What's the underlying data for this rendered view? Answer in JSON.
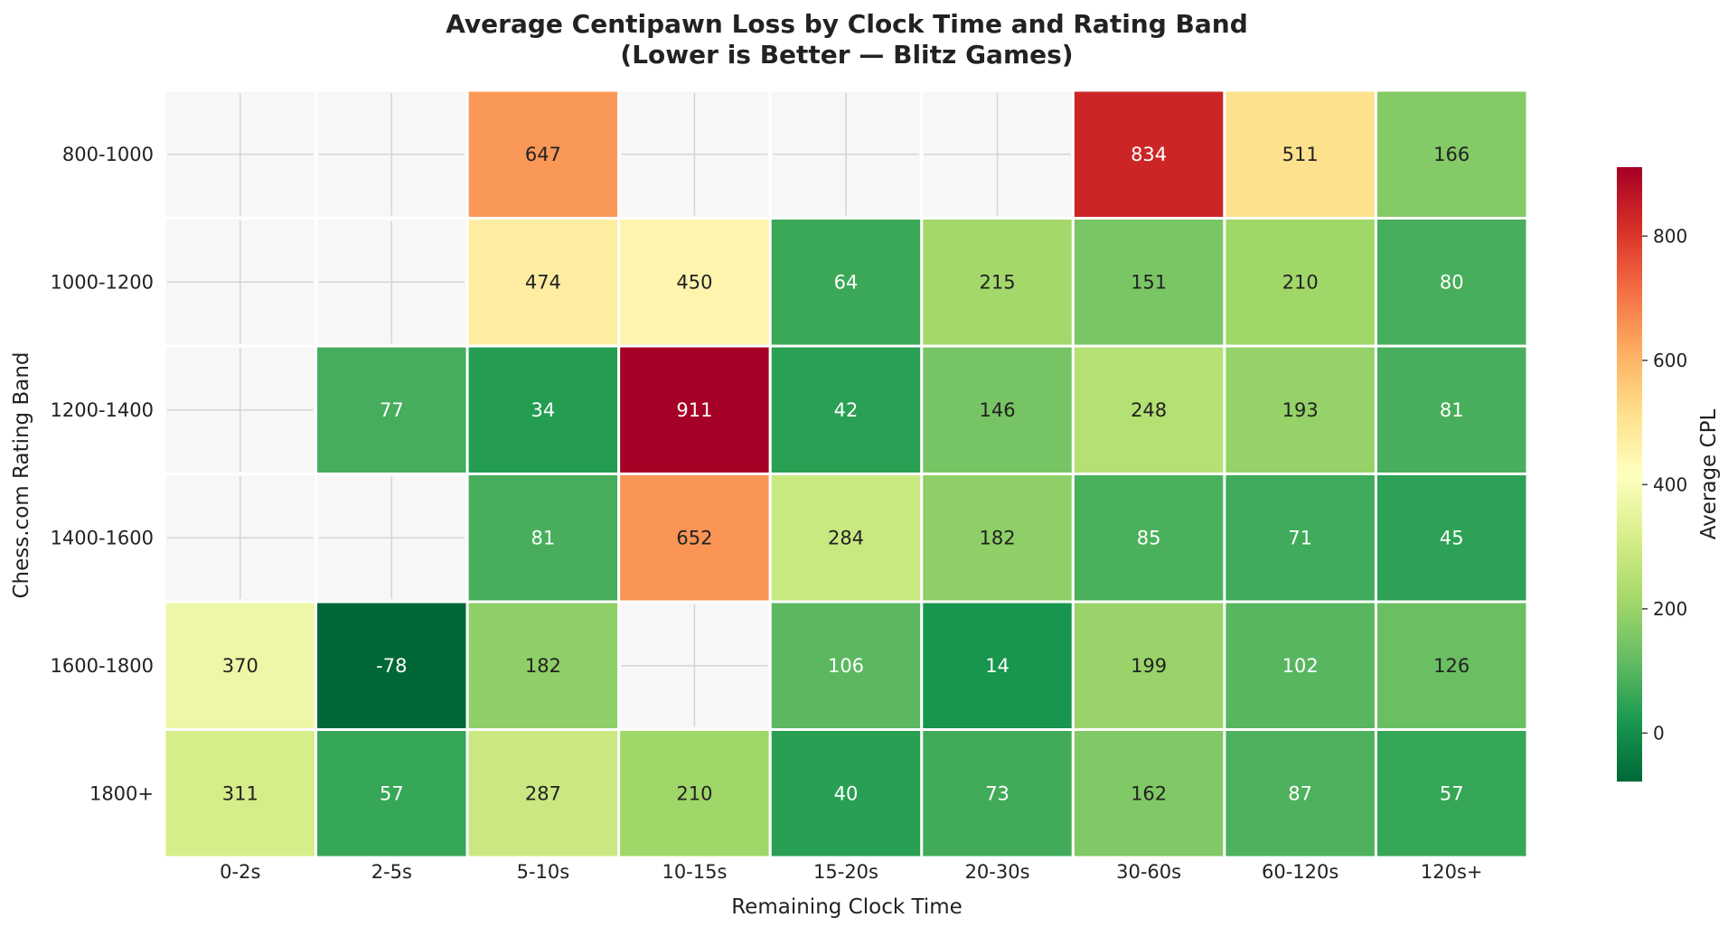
{
  "chart_data": {
    "type": "heatmap",
    "title": "Average Centipawn Loss by Clock Time and Rating Band",
    "subtitle": "(Lower is Better — Blitz Games)",
    "xlabel": "Remaining Clock Time",
    "ylabel": "Chess.com Rating Band",
    "x_categories": [
      "0-2s",
      "2-5s",
      "5-10s",
      "10-15s",
      "15-20s",
      "20-30s",
      "30-60s",
      "60-120s",
      "120s+"
    ],
    "y_categories": [
      "800-1000",
      "1000-1200",
      "1200-1400",
      "1400-1600",
      "1600-1800",
      "1800+"
    ],
    "values": [
      [
        null,
        null,
        647,
        null,
        null,
        null,
        834,
        511,
        166
      ],
      [
        null,
        null,
        474,
        450,
        64,
        215,
        151,
        210,
        80
      ],
      [
        null,
        77,
        34,
        911,
        42,
        146,
        248,
        193,
        81
      ],
      [
        null,
        null,
        81,
        652,
        284,
        182,
        85,
        71,
        45
      ],
      [
        370,
        -78,
        182,
        null,
        106,
        14,
        199,
        102,
        126
      ],
      [
        311,
        57,
        287,
        210,
        40,
        73,
        162,
        87,
        57
      ]
    ],
    "missing_value_color": "#f7f7f7",
    "colormap": "RdYlGn_r",
    "color_range": [
      -78,
      911
    ],
    "colorbar": {
      "label": "Average CPL",
      "ticks": [
        0,
        200,
        400,
        600,
        800
      ]
    },
    "grid": true
  }
}
